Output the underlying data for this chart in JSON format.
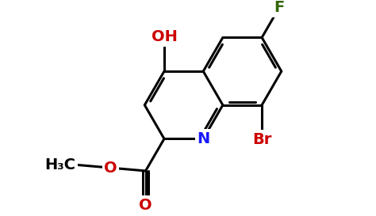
{
  "bg_color": "#ffffff",
  "bond_color": "#000000",
  "bond_width": 2.2,
  "atom_colors": {
    "C": "#000000",
    "N": "#1a1aff",
    "O": "#cc0000",
    "F": "#336600",
    "Br": "#cc0000"
  },
  "font_size": 14,
  "font_size_sub": 10,
  "bl": 1.0
}
